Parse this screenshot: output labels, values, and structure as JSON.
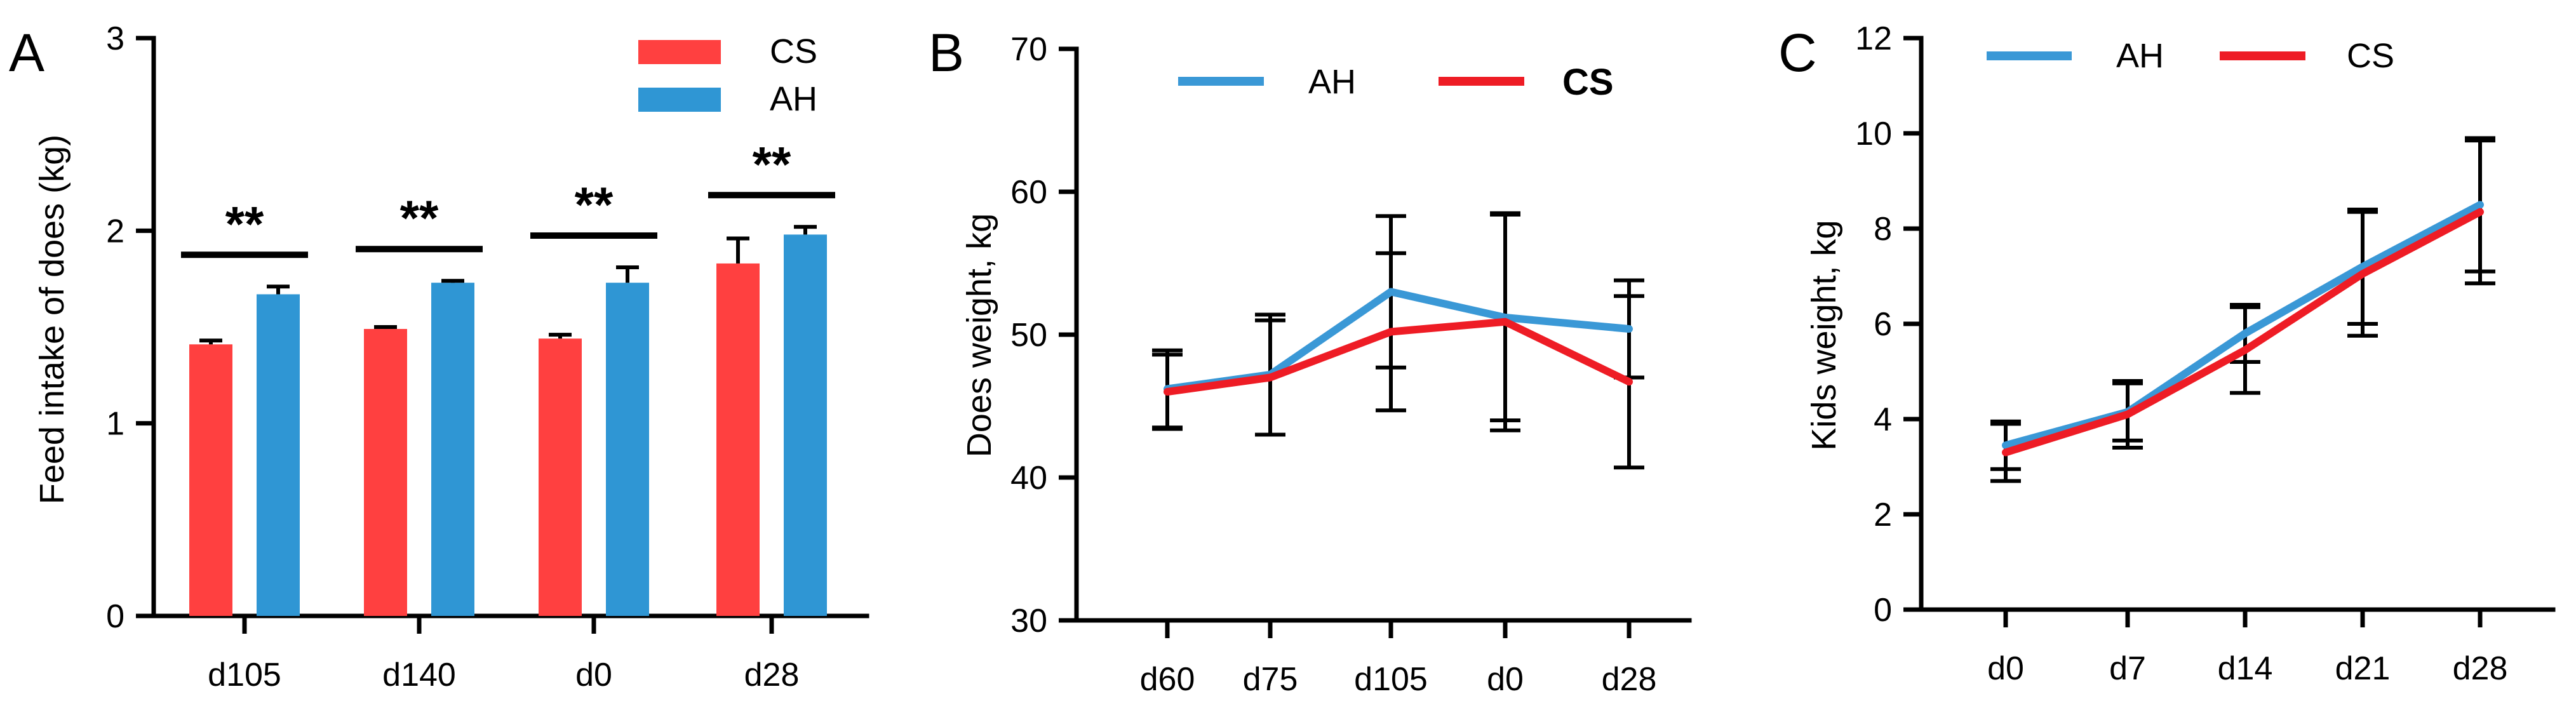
{
  "colors": {
    "cs": "#ff4040",
    "ah": "#2f96d4",
    "cs_line": "#ee1c25",
    "ah_line": "#3a98d6",
    "axis": "#000000"
  },
  "chart_data": [
    {
      "panel": "A",
      "type": "bar",
      "ylabel": "Feed intake of does (kg)",
      "xlabel": "",
      "ylim": [
        0,
        3
      ],
      "yticks": [
        "0",
        "1",
        "2",
        "3"
      ],
      "categories": [
        "d105",
        "d140",
        "d0",
        "d28"
      ],
      "series": [
        {
          "name": "CS",
          "values": [
            1.41,
            1.49,
            1.44,
            1.83
          ],
          "errors": [
            0.02,
            0.01,
            0.02,
            0.13
          ]
        },
        {
          "name": "AH",
          "values": [
            1.67,
            1.73,
            1.73,
            1.98
          ],
          "errors": [
            0.04,
            0.01,
            0.08,
            0.04
          ]
        }
      ],
      "legend": [
        "CS",
        "AH"
      ],
      "significance": [
        "**",
        "**",
        "**",
        "**"
      ]
    },
    {
      "panel": "B",
      "type": "line",
      "ylabel": "Does weight, kg",
      "xlabel": "",
      "ylim": [
        30,
        70
      ],
      "yticks": [
        "30",
        "40",
        "50",
        "60",
        "70"
      ],
      "categories": [
        "d60",
        "d75",
        "d105",
        "d0",
        "d28"
      ],
      "series": [
        {
          "name": "AH",
          "values": [
            46.2,
            47.2,
            53.0,
            51.2,
            50.4
          ],
          "errors": [
            2.7,
            4.2,
            5.3,
            7.2,
            3.4
          ]
        },
        {
          "name": "CS",
          "values": [
            46.0,
            47.0,
            50.2,
            50.9,
            46.7
          ],
          "errors": [
            2.6,
            4.0,
            5.5,
            7.6,
            6.0
          ]
        }
      ],
      "legend": [
        "AH",
        "CS"
      ]
    },
    {
      "panel": "C",
      "type": "line",
      "ylabel": "Kids weight, kg",
      "xlabel": "",
      "ylim": [
        0,
        12
      ],
      "yticks": [
        "0",
        "2",
        "4",
        "6",
        "8",
        "10",
        "12"
      ],
      "categories": [
        "d0",
        "d7",
        "d14",
        "d21",
        "d28"
      ],
      "series": [
        {
          "name": "AH",
          "values": [
            3.45,
            4.15,
            5.8,
            7.2,
            8.5
          ],
          "errors": [
            0.5,
            0.6,
            0.6,
            1.2,
            1.4
          ]
        },
        {
          "name": "CS",
          "values": [
            3.3,
            4.1,
            5.45,
            7.05,
            8.35
          ],
          "errors": [
            0.6,
            0.7,
            0.9,
            1.3,
            1.5
          ]
        }
      ],
      "legend": [
        "AH",
        "CS"
      ]
    }
  ]
}
